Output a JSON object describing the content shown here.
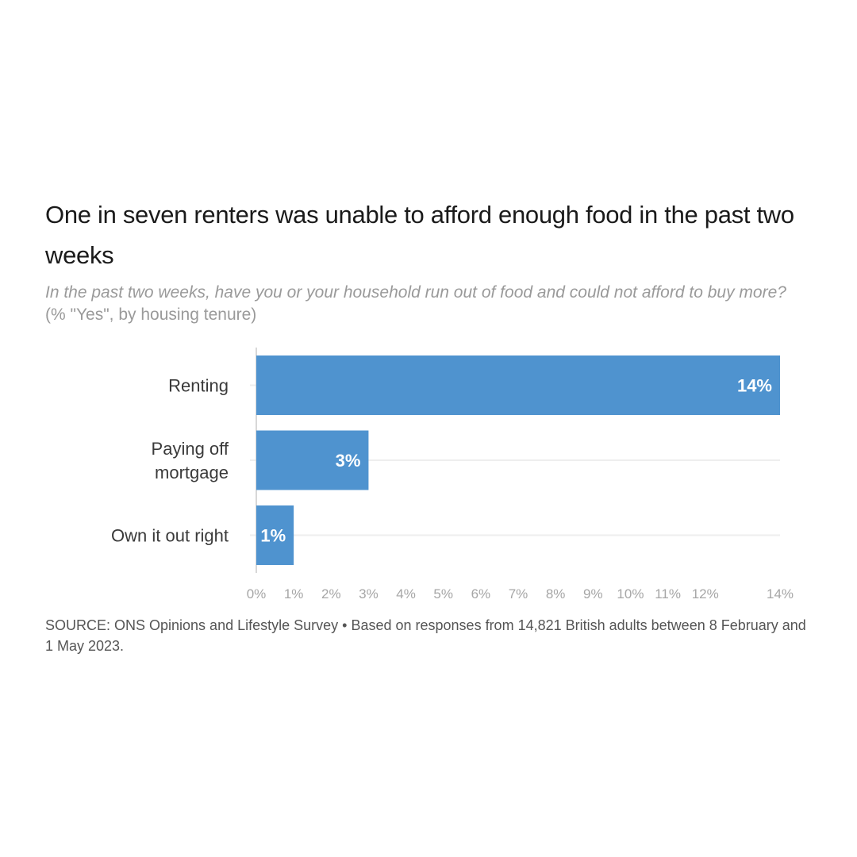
{
  "title": "One in seven renters was unable to afford enough food in the past two weeks",
  "subtitle_question": "In the past two weeks, have you or your household run out of food and could not afford to buy more?",
  "subtitle_qualifier": "(% \"Yes\", by housing tenure)",
  "source": "SOURCE: ONS Opinions and Lifestyle Survey • Based on responses from 14,821 British adults between 8 February and 1 May 2023.",
  "colors": {
    "bar": "#4f93cf",
    "axis": "#cccccc",
    "grid": "#eeeeee"
  },
  "chart_data": {
    "type": "bar",
    "orientation": "horizontal",
    "categories": [
      "Renting",
      "Paying off mortgage",
      "Own it out right"
    ],
    "category_lines": [
      [
        "Renting"
      ],
      [
        "Paying off",
        "mortgage"
      ],
      [
        "Own it out right"
      ]
    ],
    "values": [
      14,
      3,
      1
    ],
    "value_labels": [
      "14%",
      "3%",
      "1%"
    ],
    "xlim": [
      0,
      14
    ],
    "xticks": [
      0,
      1,
      2,
      3,
      4,
      5,
      6,
      7,
      8,
      9,
      10,
      11,
      12,
      14
    ],
    "xtick_labels": [
      "0%",
      "1%",
      "2%",
      "3%",
      "4%",
      "5%",
      "6%",
      "7%",
      "8%",
      "9%",
      "10%",
      "11%",
      "12%",
      "14%"
    ],
    "grid": true,
    "legend": "none"
  }
}
